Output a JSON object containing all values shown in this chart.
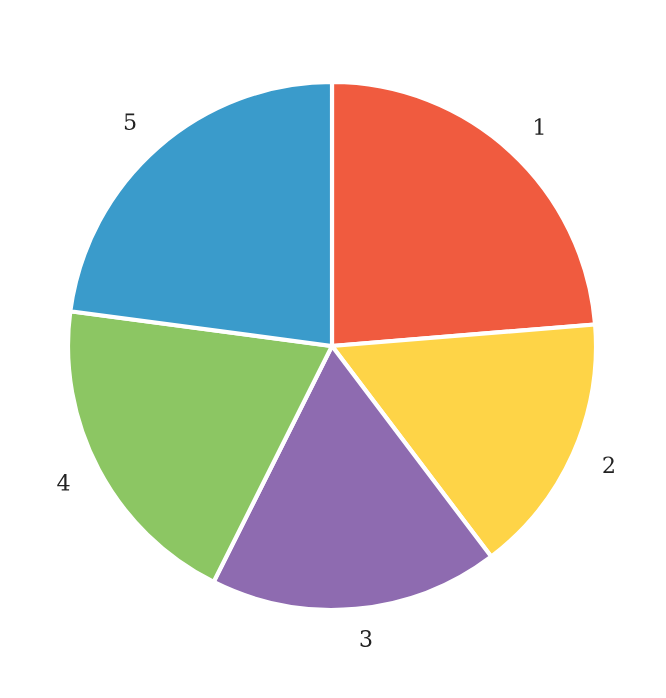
{
  "chart_data": {
    "type": "pie",
    "categories": [
      "1",
      "2",
      "3",
      "4",
      "5"
    ],
    "values": [
      23.7,
      16.0,
      17.7,
      19.7,
      22.9
    ],
    "colors": [
      "#f05b3f",
      "#fed447",
      "#8e6bb0",
      "#8cc663",
      "#3a9bcb"
    ]
  }
}
